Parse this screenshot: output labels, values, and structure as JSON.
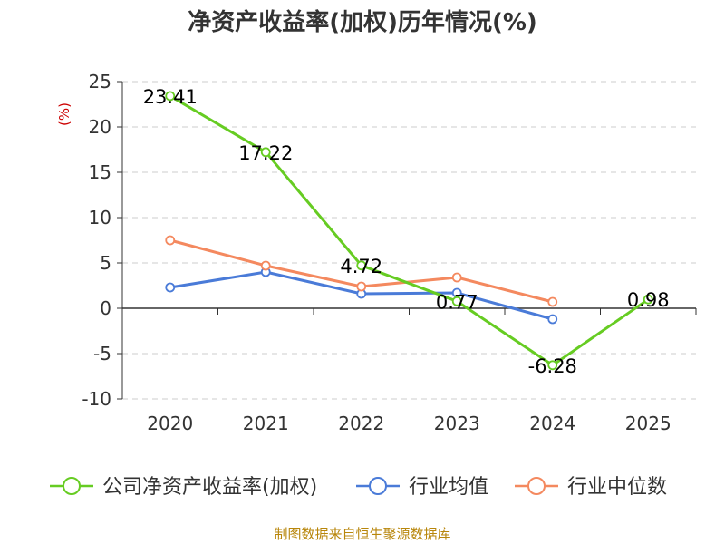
{
  "title": "净资产收益率(加权)历年情况(%)",
  "source": "制图数据来自恒生聚源数据库",
  "chart_data": {
    "type": "line",
    "title": "净资产收益率(加权)历年情况(%)",
    "ylabel": "(%)",
    "xlabel": "",
    "ylim": [
      -10,
      25
    ],
    "yticks": [
      25,
      20,
      15,
      10,
      5,
      0,
      -5,
      -10
    ],
    "categories": [
      "2020",
      "2021",
      "2022",
      "2023",
      "2024",
      "2025"
    ],
    "grid": true,
    "legend_position": "bottom",
    "series": [
      {
        "name": "公司净资产收益率(加权)",
        "color": "#66cc22",
        "values": [
          23.41,
          17.22,
          4.72,
          0.77,
          -6.28,
          0.98
        ],
        "labels": [
          "23.41",
          "17.22",
          "4.72",
          "0.77",
          "-6.28",
          "0.98"
        ]
      },
      {
        "name": "行业均值",
        "color": "#4a7bd8",
        "values": [
          2.3,
          4.0,
          1.6,
          1.7,
          -1.2,
          null
        ]
      },
      {
        "name": "行业中位数",
        "color": "#f4895f",
        "values": [
          7.5,
          4.7,
          2.4,
          3.4,
          0.7,
          null
        ]
      }
    ]
  }
}
